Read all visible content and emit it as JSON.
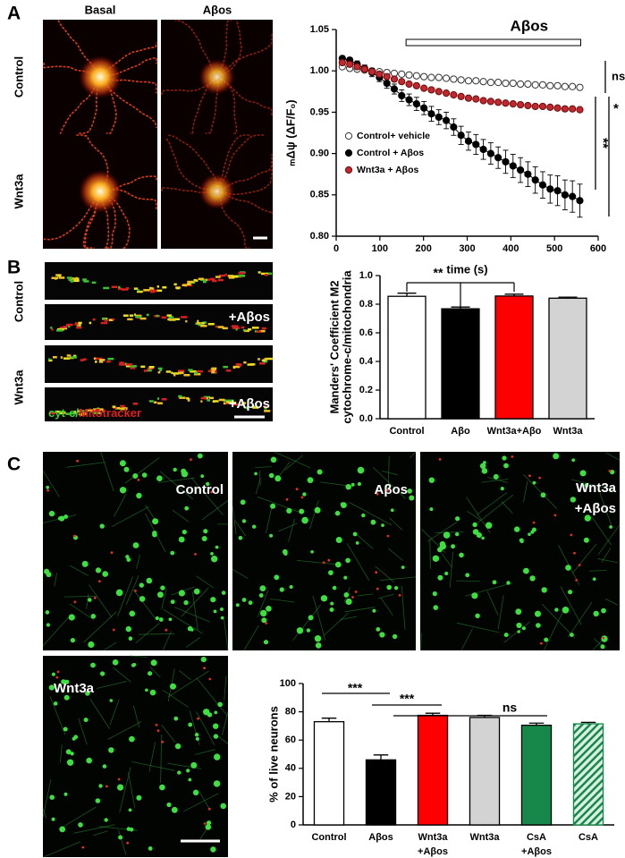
{
  "panel_labels": [
    "A",
    "B",
    "C"
  ],
  "panel_a": {
    "columns": [
      "Basal",
      "Aβos"
    ],
    "rows": [
      "Control",
      "Wnt3a"
    ]
  },
  "panel_b": {
    "rows": [
      "Control",
      "Wnt3a"
    ],
    "treatment": [
      "+Aβos",
      "+Aβos"
    ],
    "stain_green": "cyt-c/",
    "stain_red": "Mitotracker"
  },
  "panel_c": {
    "images": [
      [
        "Control"
      ],
      [
        "Aβos"
      ],
      [
        "Wnt3a",
        "+Aβos"
      ],
      [
        "Wnt3a"
      ]
    ]
  },
  "chart_data": [
    {
      "type": "line",
      "xlabel": "time (s)",
      "ylabel": "ₘΔψ (ΔF/F₀)",
      "annotations": [
        "Aβos",
        "ns",
        "**",
        "*"
      ],
      "treatment_span": [
        160,
        560
      ],
      "x": [
        14,
        31,
        48,
        65,
        82,
        99,
        116,
        133,
        150,
        167,
        184,
        201,
        218,
        235,
        252,
        269,
        286,
        303,
        320,
        337,
        354,
        371,
        388,
        405,
        422,
        439,
        456,
        473,
        490,
        507,
        524,
        541,
        558
      ],
      "series": [
        {
          "name": "Control+ vehicle",
          "color": "#ffffff",
          "values": [
            1.005,
            1.003,
            1.002,
            1.001,
            1.0,
            0.999,
            0.998,
            0.997,
            0.996,
            0.995,
            0.994,
            0.993,
            0.992,
            0.992,
            0.991,
            0.99,
            0.989,
            0.988,
            0.988,
            0.987,
            0.986,
            0.986,
            0.985,
            0.985,
            0.984,
            0.984,
            0.983,
            0.983,
            0.982,
            0.982,
            0.981,
            0.981,
            0.98
          ]
        },
        {
          "name": "Control + Aβos",
          "color": "#000000",
          "values": [
            1.015,
            1.013,
            1.008,
            1.003,
            0.998,
            0.992,
            0.985,
            0.978,
            0.97,
            0.965,
            0.96,
            0.955,
            0.948,
            0.944,
            0.94,
            0.932,
            0.922,
            0.915,
            0.911,
            0.905,
            0.9,
            0.895,
            0.89,
            0.885,
            0.88,
            0.875,
            0.868,
            0.862,
            0.857,
            0.855,
            0.85,
            0.848,
            0.843
          ],
          "errors": [
            0.003,
            0.003,
            0.004,
            0.004,
            0.005,
            0.005,
            0.006,
            0.006,
            0.007,
            0.007,
            0.008,
            0.008,
            0.009,
            0.009,
            0.01,
            0.01,
            0.011,
            0.011,
            0.012,
            0.012,
            0.013,
            0.013,
            0.014,
            0.014,
            0.015,
            0.015,
            0.016,
            0.016,
            0.017,
            0.018,
            0.018,
            0.019,
            0.02
          ]
        },
        {
          "name": "Wnt3a + Aβos",
          "color": "#c1272d",
          "values": [
            1.01,
            1.008,
            1.005,
            1.002,
            0.999,
            0.996,
            0.993,
            0.99,
            0.987,
            0.984,
            0.982,
            0.979,
            0.977,
            0.975,
            0.973,
            0.971,
            0.969,
            0.967,
            0.966,
            0.964,
            0.963,
            0.962,
            0.961,
            0.96,
            0.959,
            0.958,
            0.957,
            0.957,
            0.956,
            0.955,
            0.954,
            0.954,
            0.953
          ]
        }
      ],
      "xlim": [
        0,
        600
      ],
      "xticks": [
        0,
        100,
        200,
        300,
        400,
        500,
        600
      ],
      "ylim": [
        0.8,
        1.05
      ],
      "yticks": [
        {
          "value": 0.8,
          "label": "0.80"
        },
        0.85,
        {
          "value": 0.9,
          "label": "0.90"
        },
        0.95,
        {
          "value": 1,
          "label": "1.00"
        },
        1.05
      ],
      "legend": "lower left"
    },
    {
      "type": "bar",
      "ylabel": [
        "Manders' Coefficient  M2",
        "cytochrome-c/mitochondria"
      ],
      "annotations": [
        "**"
      ],
      "categories": [
        [
          "Control"
        ],
        [
          "Aβo"
        ],
        [
          "Wnt3a+Aβo"
        ],
        [
          "Wnt3a"
        ]
      ],
      "values": [
        0.855,
        0.768,
        0.857,
        0.842
      ],
      "errors": [
        0.022,
        0.012,
        0.013,
        0.007
      ],
      "colors": [
        "#ffffff",
        "#000000",
        "#ff0000",
        "#d3d3d3"
      ],
      "hatch": [
        false,
        false,
        false,
        false
      ],
      "ylim": [
        0,
        1
      ],
      "yticks": [
        {
          "value": 0,
          "label": "0.0"
        },
        0.2,
        0.4,
        0.6,
        0.8,
        {
          "value": 1,
          "label": "1.0"
        }
      ]
    },
    {
      "type": "bar",
      "ylabel": "% of live neurons",
      "annotations": [
        "***",
        "***",
        "ns"
      ],
      "categories": [
        [
          "Control"
        ],
        [
          "Aβos"
        ],
        [
          "Wnt3a",
          "+Aβos"
        ],
        [
          "Wnt3a"
        ],
        [
          "CsA",
          "+Aβos"
        ],
        [
          "CsA"
        ]
      ],
      "values": [
        73,
        46,
        77.5,
        76,
        70.5,
        71.5
      ],
      "errors": [
        2.5,
        3.5,
        1.5,
        1.5,
        1.5,
        1
      ],
      "colors": [
        "#ffffff",
        "#000000",
        "#ff0000",
        "#d3d3d3",
        "#17884a",
        "#17884a"
      ],
      "hatch": [
        false,
        false,
        false,
        false,
        false,
        true
      ],
      "ylim": [
        0,
        100
      ],
      "yticks": [
        0,
        20,
        40,
        60,
        80,
        100
      ]
    }
  ]
}
